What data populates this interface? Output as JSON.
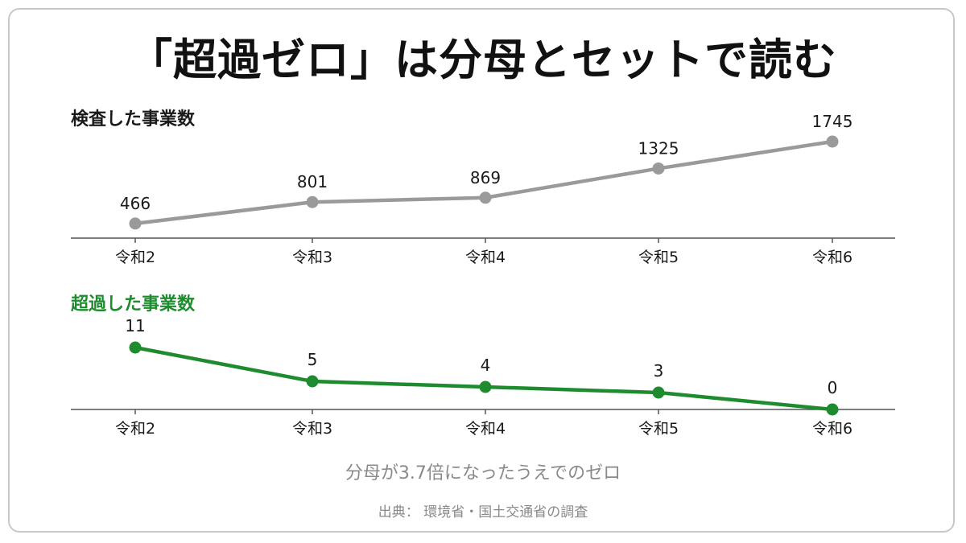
{
  "title": "「超過ゼロ」は分母とセットで読む",
  "note": "分母が3.7倍になったうえでのゼロ",
  "source": "出典： 環境省・国土交通省の調査",
  "colors": {
    "inspected": "#9a9a9a",
    "exceeded": "#1e8c2e",
    "axis": "#555555",
    "text": "#1a1a1a"
  },
  "chart_data": [
    {
      "type": "line",
      "title": "検査した事業数",
      "categories": [
        "令和2",
        "令和3",
        "令和4",
        "令和5",
        "令和6"
      ],
      "values": [
        466,
        801,
        869,
        1325,
        1745
      ],
      "ylim": [
        0,
        1745
      ],
      "grid": false,
      "data_labels": true
    },
    {
      "type": "line",
      "title": "超過した事業数",
      "categories": [
        "令和2",
        "令和3",
        "令和4",
        "令和5",
        "令和6"
      ],
      "values": [
        11,
        5,
        4,
        3,
        0
      ],
      "ylim": [
        0,
        11
      ],
      "grid": false,
      "data_labels": true
    }
  ]
}
